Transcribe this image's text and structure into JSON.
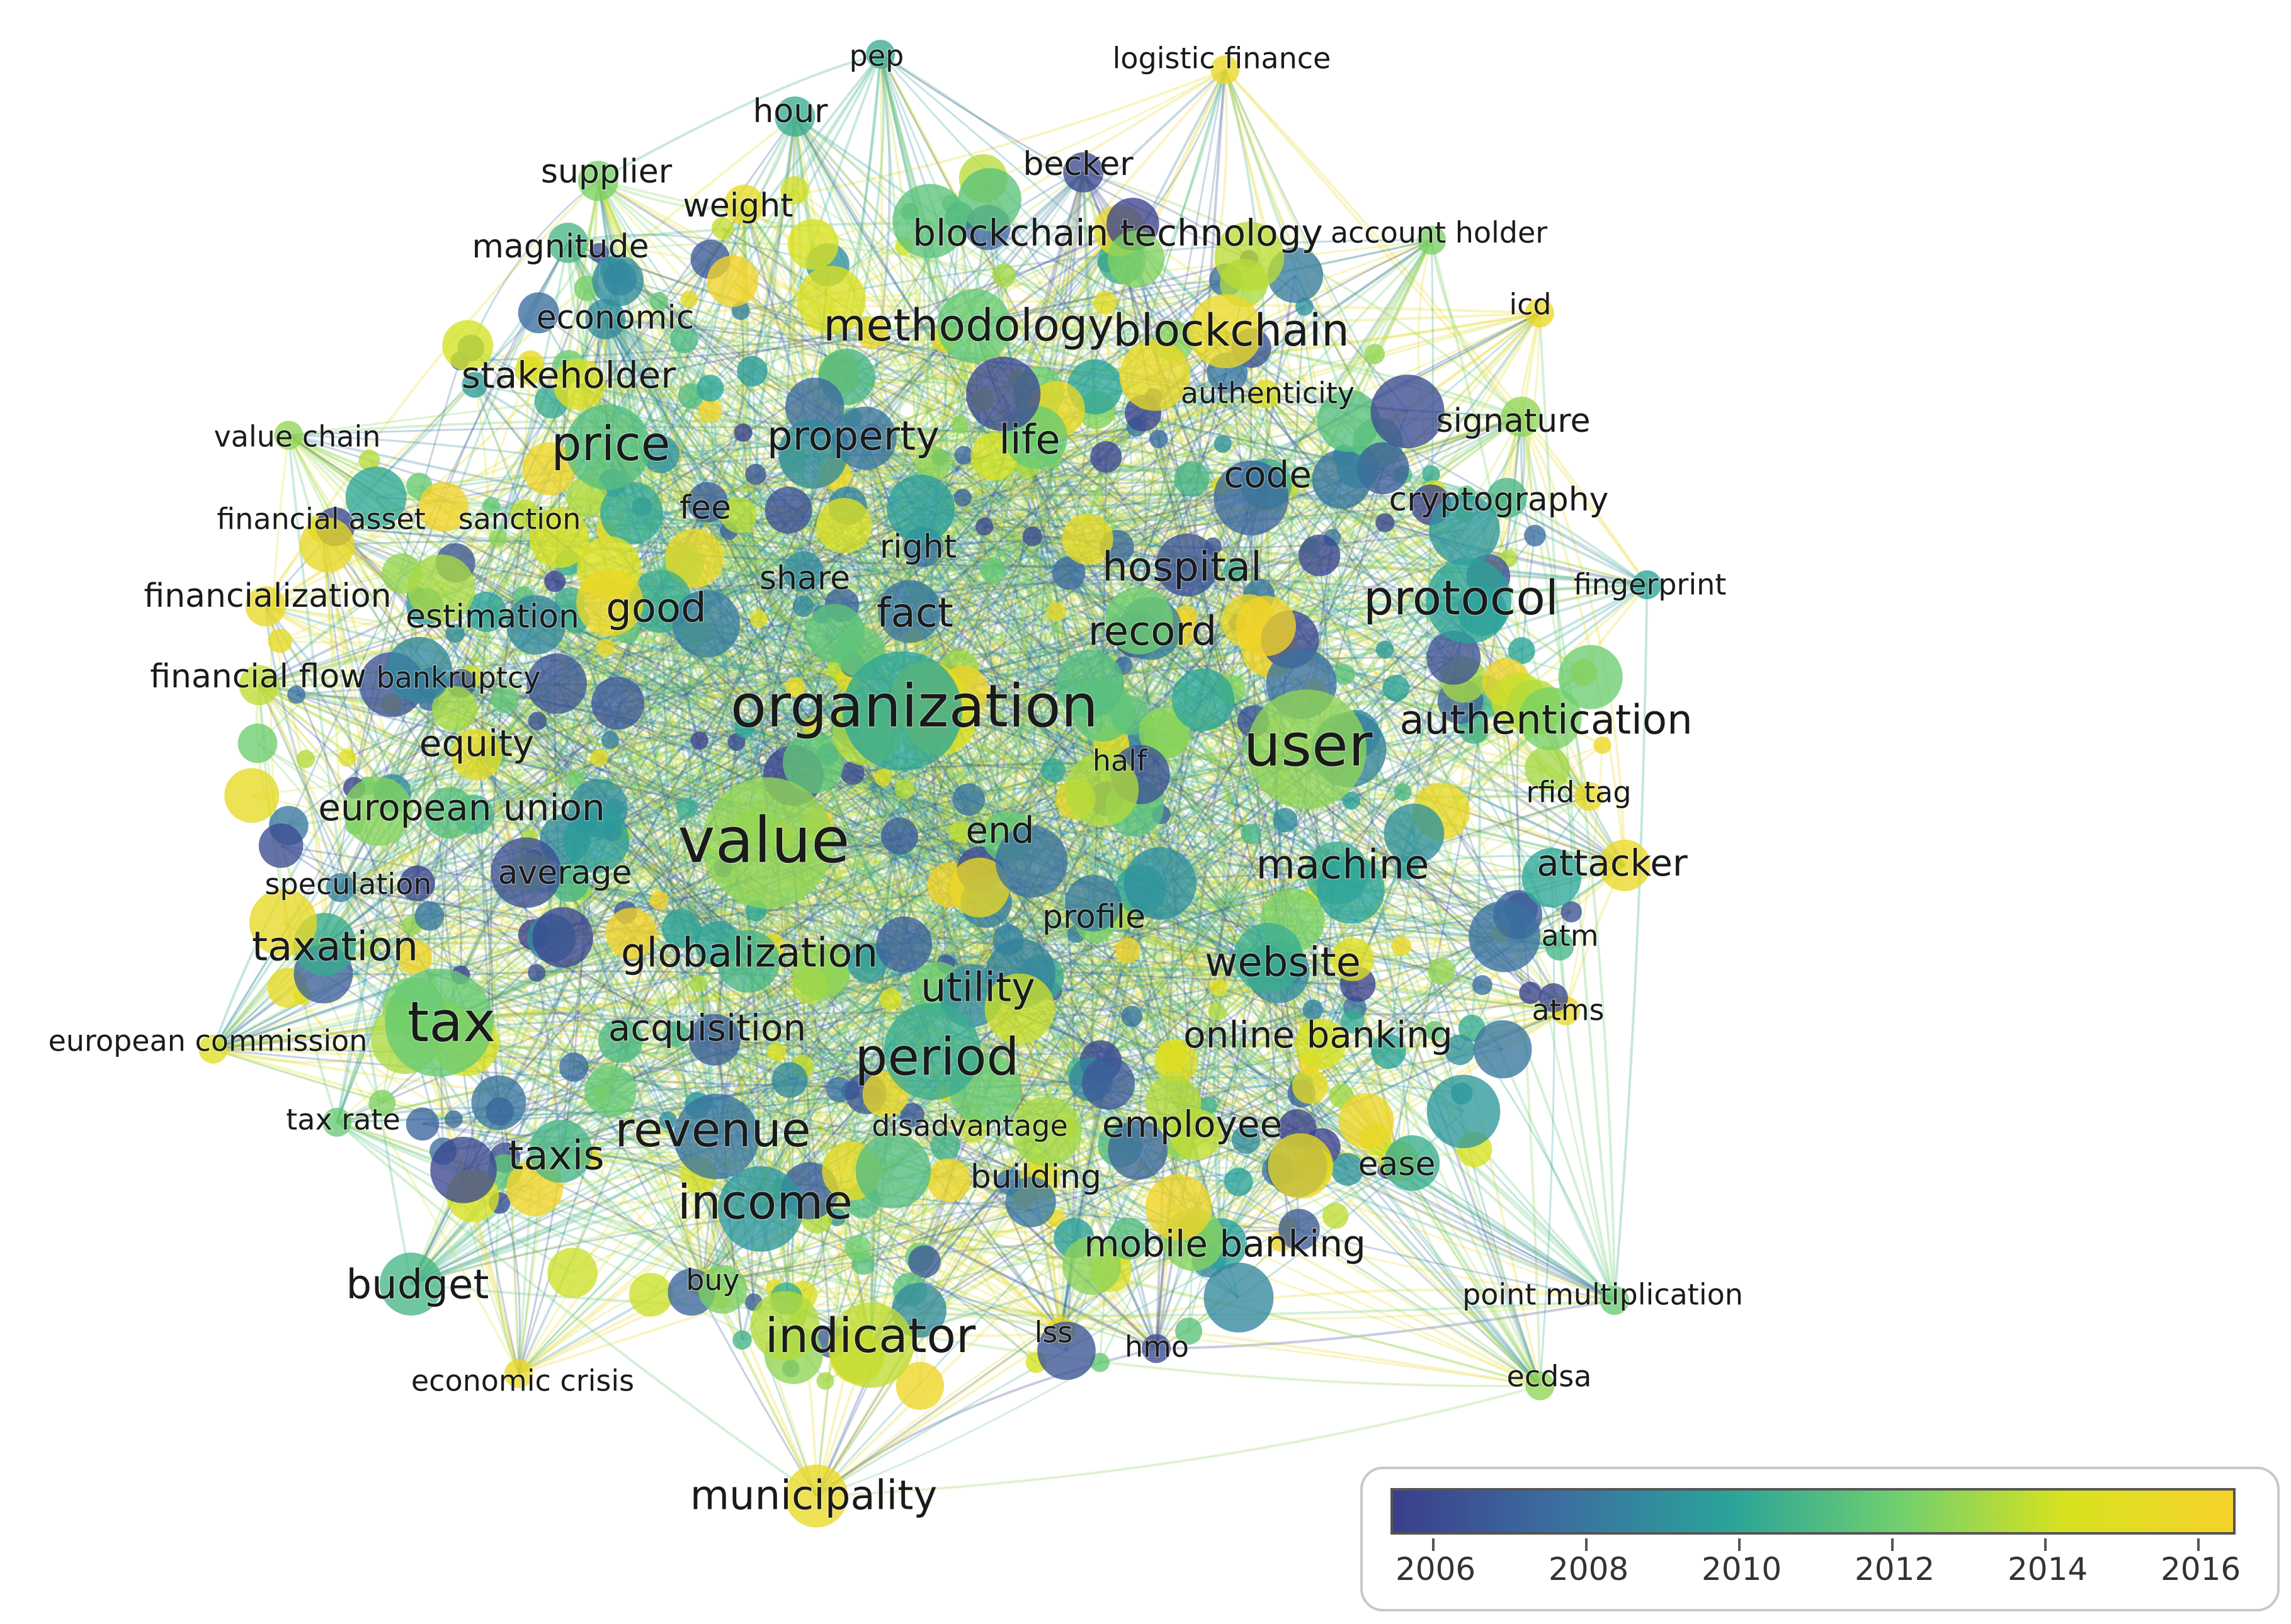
{
  "diagram": {
    "type": "co-occurrence network (overlay visualization)",
    "color_scale": {
      "stops": [
        "#3b3e8c",
        "#3b6fa0",
        "#2aa39a",
        "#6fcf6f",
        "#d8e21f",
        "#f5d22a"
      ],
      "year_min": 2005.5,
      "year_max": 2016.8,
      "ticks": [
        "2006",
        "2008",
        "2010",
        "2012",
        "2014",
        "2016"
      ]
    },
    "terms": [
      {
        "label": "pep",
        "year": 2010.5,
        "weight": 1
      },
      {
        "label": "logistic finance",
        "year": 2016,
        "weight": 1
      },
      {
        "label": "hour",
        "year": 2010.5,
        "weight": 2
      },
      {
        "label": "supplier",
        "year": 2012.5,
        "weight": 2
      },
      {
        "label": "becker",
        "year": 2006,
        "weight": 2
      },
      {
        "label": "weight",
        "year": 2015.5,
        "weight": 2
      },
      {
        "label": "magnitude",
        "year": 2011,
        "weight": 2
      },
      {
        "label": "blockchain technology",
        "year": 2016,
        "weight": 3
      },
      {
        "label": "account holder",
        "year": 2012.5,
        "weight": 1
      },
      {
        "label": "icd",
        "year": 2016,
        "weight": 1
      },
      {
        "label": "economic",
        "year": 2009,
        "weight": 2
      },
      {
        "label": "methodology",
        "year": 2012,
        "weight": 5
      },
      {
        "label": "blockchain",
        "year": 2016,
        "weight": 5
      },
      {
        "label": "stakeholder",
        "year": 2015,
        "weight": 3
      },
      {
        "label": "authenticity",
        "year": 2015,
        "weight": 1
      },
      {
        "label": "signature",
        "year": 2013,
        "weight": 2
      },
      {
        "label": "value chain",
        "year": 2013,
        "weight": 1
      },
      {
        "label": "price",
        "year": 2011.5,
        "weight": 6
      },
      {
        "label": "property",
        "year": 2008,
        "weight": 4
      },
      {
        "label": "life",
        "year": 2012,
        "weight": 4
      },
      {
        "label": "code",
        "year": 2010.5,
        "weight": 3
      },
      {
        "label": "cryptography",
        "year": 2011,
        "weight": 2
      },
      {
        "label": "financial asset",
        "year": 2015,
        "weight": 1
      },
      {
        "label": "sanction",
        "year": 2014,
        "weight": 1
      },
      {
        "label": "fee",
        "year": 2007,
        "weight": 2
      },
      {
        "label": "right",
        "year": 2008,
        "weight": 2
      },
      {
        "label": "hospital",
        "year": 2006.5,
        "weight": 4
      },
      {
        "label": "fingerprint",
        "year": 2010,
        "weight": 1
      },
      {
        "label": "financialization",
        "year": 2016,
        "weight": 2
      },
      {
        "label": "share",
        "year": 2009,
        "weight": 2
      },
      {
        "label": "estimation",
        "year": 2010,
        "weight": 2
      },
      {
        "label": "good",
        "year": 2010.5,
        "weight": 4
      },
      {
        "label": "fact",
        "year": 2008,
        "weight": 4
      },
      {
        "label": "record",
        "year": 2008.5,
        "weight": 4
      },
      {
        "label": "protocol",
        "year": 2010,
        "weight": 6
      },
      {
        "label": "financial flow",
        "year": 2014,
        "weight": 2
      },
      {
        "label": "bankruptcy",
        "year": 2006.5,
        "weight": 1
      },
      {
        "label": "organization",
        "year": 2010.2,
        "weight": 9
      },
      {
        "label": "user",
        "year": 2013,
        "weight": 9
      },
      {
        "label": "authentication",
        "year": 2012.5,
        "weight": 4
      },
      {
        "label": "equity",
        "year": 2015.5,
        "weight": 3
      },
      {
        "label": "half",
        "year": 2012,
        "weight": 1
      },
      {
        "label": "rfid tag",
        "year": 2016,
        "weight": 1
      },
      {
        "label": "european union",
        "year": 2011.5,
        "weight": 3
      },
      {
        "label": "value",
        "year": 2013,
        "weight": 10
      },
      {
        "label": "end",
        "year": 2012,
        "weight": 3
      },
      {
        "label": "machine",
        "year": 2010.5,
        "weight": 4
      },
      {
        "label": "attacker",
        "year": 2016,
        "weight": 3
      },
      {
        "label": "speculation",
        "year": 2008.5,
        "weight": 1
      },
      {
        "label": "average",
        "year": 2011,
        "weight": 2
      },
      {
        "label": "profile",
        "year": 2012.5,
        "weight": 2
      },
      {
        "label": "atm",
        "year": 2011,
        "weight": 1
      },
      {
        "label": "taxation",
        "year": 2010.5,
        "weight": 4
      },
      {
        "label": "globalization",
        "year": 2011,
        "weight": 4
      },
      {
        "label": "website",
        "year": 2009,
        "weight": 4
      },
      {
        "label": "utility",
        "year": 2009,
        "weight": 4
      },
      {
        "label": "atms",
        "year": 2016,
        "weight": 1
      },
      {
        "label": "tax",
        "year": 2012,
        "weight": 8
      },
      {
        "label": "european commission",
        "year": 2015,
        "weight": 1
      },
      {
        "label": "acquisition",
        "year": 2007,
        "weight": 3
      },
      {
        "label": "online banking",
        "year": 2014.5,
        "weight": 3
      },
      {
        "label": "period",
        "year": 2010.5,
        "weight": 7
      },
      {
        "label": "tax rate",
        "year": 2012,
        "weight": 1
      },
      {
        "label": "revenue",
        "year": 2008,
        "weight": 6
      },
      {
        "label": "disadvantage",
        "year": 2014,
        "weight": 1
      },
      {
        "label": "employee",
        "year": 2014,
        "weight": 3
      },
      {
        "label": "taxis",
        "year": 2011,
        "weight": 4
      },
      {
        "label": "ease",
        "year": 2014.5,
        "weight": 2
      },
      {
        "label": "building",
        "year": 2015.5,
        "weight": 2
      },
      {
        "label": "income",
        "year": 2009.5,
        "weight": 6
      },
      {
        "label": "mobile banking",
        "year": 2010,
        "weight": 3
      },
      {
        "label": "budget",
        "year": 2011,
        "weight": 4
      },
      {
        "label": "buy",
        "year": 2016,
        "weight": 1
      },
      {
        "label": "point multiplication",
        "year": 2012,
        "weight": 1
      },
      {
        "label": "indicator",
        "year": 2014,
        "weight": 6
      },
      {
        "label": "lss",
        "year": 2016,
        "weight": 1
      },
      {
        "label": "hmo",
        "year": 2006,
        "weight": 1
      },
      {
        "label": "ecdsa",
        "year": 2013,
        "weight": 1
      },
      {
        "label": "economic crisis",
        "year": 2016,
        "weight": 1
      },
      {
        "label": "municipality",
        "year": 2016,
        "weight": 4
      }
    ]
  }
}
